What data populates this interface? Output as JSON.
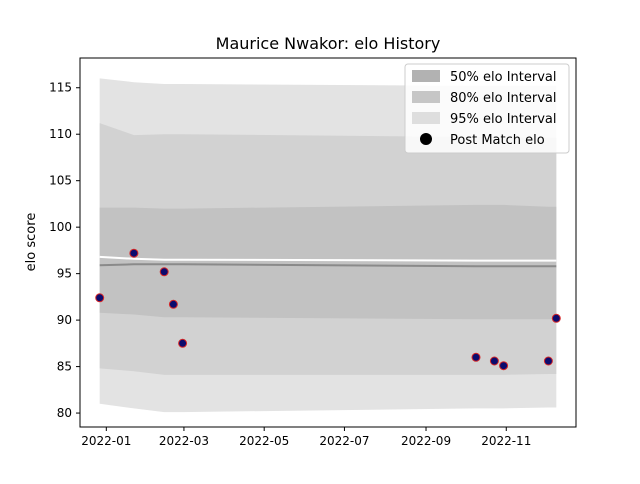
{
  "chart_data": {
    "type": "area",
    "title": "Maurice Nwakor: elo History",
    "xlabel": "",
    "ylabel": "elo score",
    "xlim": [
      "2021-12-12",
      "2022-12-24"
    ],
    "ylim": [
      78.5,
      118.2
    ],
    "x_ticks": [
      "2022-01",
      "2022-03",
      "2022-05",
      "2022-07",
      "2022-09",
      "2022-11"
    ],
    "y_ticks": [
      80,
      85,
      90,
      95,
      100,
      105,
      110,
      115
    ],
    "grid": false,
    "legend_position": "top-right",
    "bands": {
      "x": [
        "2021-12-27",
        "2022-01-22",
        "2022-02-14",
        "2022-02-21",
        "2022-02-28",
        "2022-10-09",
        "2022-10-23",
        "2022-10-30",
        "2022-12-03",
        "2022-12-09"
      ],
      "interval_95": {
        "name": "95% elo Interval",
        "lower": [
          81.0,
          80.5,
          80.1,
          80.1,
          80.1,
          80.5,
          80.5,
          80.5,
          80.6,
          80.6
        ],
        "upper": [
          116.0,
          115.6,
          115.4,
          115.4,
          115.4,
          115.2,
          115.2,
          115.2,
          115.2,
          115.2
        ]
      },
      "interval_80": {
        "name": "80% elo Interval",
        "lower": [
          84.8,
          84.5,
          84.1,
          84.1,
          84.1,
          84.1,
          84.1,
          84.1,
          84.2,
          84.2
        ],
        "upper": [
          111.2,
          109.9,
          110.0,
          110.0,
          110.0,
          109.7,
          109.7,
          109.7,
          109.6,
          109.6
        ]
      },
      "interval_50": {
        "name": "50% elo Interval",
        "lower": [
          90.8,
          90.6,
          90.3,
          90.3,
          90.3,
          90.1,
          90.1,
          90.1,
          90.1,
          90.1
        ],
        "upper": [
          102.1,
          102.1,
          102.0,
          102.0,
          102.0,
          102.4,
          102.4,
          102.4,
          102.2,
          102.2
        ]
      },
      "center_dark": [
        95.9,
        96.0,
        96.0,
        96.0,
        96.0,
        95.8,
        95.8,
        95.8,
        95.8,
        95.8
      ],
      "center_light": [
        96.8,
        96.6,
        96.5,
        96.5,
        96.5,
        96.4,
        96.4,
        96.4,
        96.4,
        96.4
      ]
    },
    "series": [
      {
        "name": "Post Match elo",
        "x": [
          "2021-12-27",
          "2022-01-22",
          "2022-02-14",
          "2022-02-21",
          "2022-02-28",
          "2022-10-09",
          "2022-10-23",
          "2022-10-30",
          "2022-12-03",
          "2022-12-09"
        ],
        "y": [
          92.4,
          97.2,
          95.2,
          91.7,
          87.5,
          86.0,
          85.6,
          85.1,
          85.6,
          90.2
        ]
      }
    ],
    "colors": {
      "band_95": "#e3e3e3",
      "band_80": "#d2d2d2",
      "band_50": "#c2c2c2",
      "center_dark": "#8a8a8a",
      "center_light": "#ffffff",
      "marker_fill": "#0b0b6e",
      "marker_edge": "#d62728"
    }
  },
  "legend": {
    "items": [
      {
        "label": "50% elo Interval",
        "swatch": "#b2b2b2"
      },
      {
        "label": "80% elo Interval",
        "swatch": "#c6c6c6"
      },
      {
        "label": "95% elo Interval",
        "swatch": "#dedede"
      },
      {
        "label": "Post Match elo",
        "marker": "#000000"
      }
    ]
  }
}
